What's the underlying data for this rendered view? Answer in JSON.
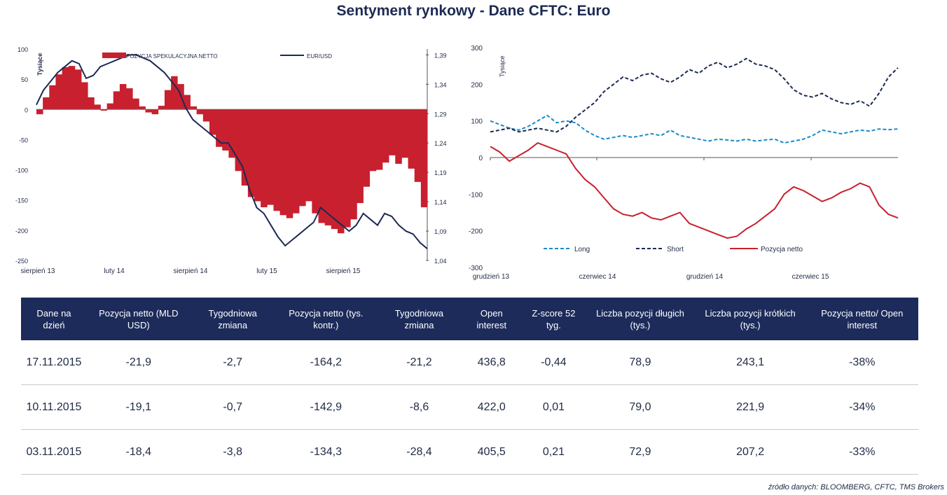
{
  "title": "Sentyment rynkowy - Dane CFTC:  Euro",
  "source": "źródło danych: BLOOMBERG, CFTC, TMS Brokers",
  "chart_data": [
    {
      "type": "bar",
      "ylabel": "Tysiące",
      "y_ticks": [
        "100",
        "50",
        "0",
        "-50",
        "-100",
        "-150",
        "-200",
        "-250"
      ],
      "ylim": [
        -250,
        100
      ],
      "y2_ticks": [
        "1,39",
        "1,34",
        "1,29",
        "1,24",
        "1,19",
        "1,14",
        "1,09",
        "1,04"
      ],
      "y2lim": [
        1.04,
        1.4
      ],
      "x_ticks": [
        "sierpień 13",
        "luty 14",
        "sierpień 14",
        "luty 15",
        "sierpień 15"
      ],
      "legend": [
        "POZYCJA SPEKULACYJNA NETTO",
        "EUR/USD"
      ],
      "series": [
        {
          "name": "POZYCJA SPEKULACYJNA NETTO",
          "color": "#c8202f",
          "values": [
            -8,
            20,
            40,
            58,
            70,
            72,
            66,
            45,
            20,
            8,
            -2,
            10,
            30,
            42,
            35,
            18,
            5,
            -5,
            -8,
            6,
            32,
            55,
            42,
            24,
            5,
            -8,
            -20,
            -42,
            -62,
            -68,
            -80,
            -102,
            -126,
            -145,
            -152,
            -162,
            -158,
            -168,
            -175,
            -180,
            -172,
            -160,
            -152,
            -172,
            -188,
            -192,
            -198,
            -205,
            -195,
            -182,
            -155,
            -128,
            -102,
            -100,
            -88,
            -76,
            -90,
            -80,
            -98,
            -120,
            -162
          ]
        },
        {
          "name": "EUR/USD",
          "color": "#1c2a52",
          "values": [
            1.305,
            1.33,
            1.345,
            1.36,
            1.37,
            1.38,
            1.375,
            1.35,
            1.355,
            1.37,
            1.375,
            1.38,
            1.385,
            1.39,
            1.39,
            1.385,
            1.38,
            1.37,
            1.36,
            1.345,
            1.33,
            1.3,
            1.28,
            1.27,
            1.26,
            1.25,
            1.24,
            1.24,
            1.22,
            1.2,
            1.16,
            1.13,
            1.12,
            1.1,
            1.08,
            1.065,
            1.075,
            1.085,
            1.095,
            1.105,
            1.13,
            1.12,
            1.11,
            1.1,
            1.09,
            1.1,
            1.12,
            1.11,
            1.1,
            1.12,
            1.115,
            1.1,
            1.09,
            1.085,
            1.07,
            1.06
          ]
        }
      ]
    },
    {
      "type": "line",
      "ylabel": "Tysiące",
      "y_ticks": [
        "300",
        "200",
        "100",
        "0",
        "-100",
        "-200",
        "-300"
      ],
      "ylim": [
        -300,
        300
      ],
      "x_ticks": [
        "grudzień 13",
        "czerwiec 14",
        "grudzień 14",
        "czerwiec 15"
      ],
      "series": [
        {
          "name": "Long",
          "color": "#1a8ac9",
          "dash": "dashed",
          "values": [
            100,
            90,
            80,
            75,
            85,
            100,
            115,
            95,
            100,
            95,
            75,
            60,
            50,
            55,
            60,
            55,
            60,
            65,
            60,
            75,
            60,
            55,
            50,
            45,
            50,
            48,
            45,
            50,
            45,
            48,
            50,
            40,
            45,
            50,
            60,
            75,
            70,
            65,
            70,
            75,
            72,
            78,
            76,
            78
          ]
        },
        {
          "name": "Short",
          "color": "#1c2a52",
          "dash": "dashed",
          "values": [
            70,
            75,
            80,
            70,
            75,
            80,
            75,
            70,
            85,
            110,
            130,
            150,
            180,
            200,
            220,
            210,
            225,
            230,
            215,
            205,
            220,
            240,
            230,
            250,
            260,
            245,
            255,
            270,
            255,
            250,
            240,
            215,
            185,
            170,
            165,
            175,
            160,
            150,
            145,
            155,
            140,
            175,
            220,
            245
          ]
        },
        {
          "name": "Pozycja netto",
          "color": "#c8202f",
          "dash": "solid",
          "values": [
            30,
            15,
            -10,
            5,
            20,
            40,
            30,
            20,
            10,
            -30,
            -60,
            -80,
            -110,
            -140,
            -155,
            -160,
            -150,
            -165,
            -170,
            -160,
            -150,
            -180,
            -190,
            -200,
            -210,
            -220,
            -215,
            -195,
            -180,
            -160,
            -140,
            -100,
            -80,
            -90,
            -105,
            -120,
            -110,
            -95,
            -85,
            -70,
            -80,
            -130,
            -155,
            -165
          ]
        }
      ]
    }
  ],
  "table": {
    "headers": [
      "Dane na dzień",
      "Pozycja netto (MLD USD)",
      "Tygodniowa zmiana",
      "Pozycja netto (tys. kontr.)",
      "Tygodniowa zmiana",
      "Open interest",
      "Z-score 52 tyg.",
      "Liczba pozycji długich (tys.)",
      "Liczba pozycji krótkich (tys.)",
      "Pozycja netto/ Open interest"
    ],
    "rows": [
      [
        "17.11.2015",
        "-21,9",
        "-2,7",
        "-164,2",
        "-21,2",
        "436,8",
        "-0,44",
        "78,9",
        "243,1",
        "-38%"
      ],
      [
        "10.11.2015",
        "-19,1",
        "-0,7",
        "-142,9",
        "-8,6",
        "422,0",
        "0,01",
        "79,0",
        "221,9",
        "-34%"
      ],
      [
        "03.11.2015",
        "-18,4",
        "-3,8",
        "-134,3",
        "-28,4",
        "405,5",
        "0,21",
        "72,9",
        "207,2",
        "-33%"
      ]
    ]
  }
}
